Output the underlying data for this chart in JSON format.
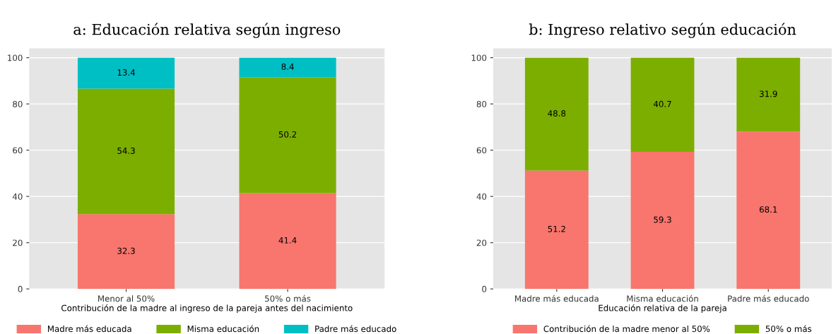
{
  "chart_data": [
    {
      "type": "bar",
      "stacked": true,
      "title": "a: Educación relativa según ingreso",
      "xlabel": "Contribución de la madre al ingreso de la pareja antes del nacimiento",
      "categories": [
        "Menor al 50%",
        "50% o más"
      ],
      "series": [
        {
          "name": "Madre más educada",
          "color": "#f8766d",
          "values": [
            32.3,
            41.4
          ]
        },
        {
          "name": "Misma educación",
          "color": "#7cae00",
          "values": [
            54.3,
            50.2
          ]
        },
        {
          "name": "Padre más educado",
          "color": "#00bfc4",
          "values": [
            13.4,
            8.4
          ]
        }
      ],
      "ylim": [
        0,
        104
      ],
      "yticks": [
        0,
        20,
        40,
        60,
        80,
        100
      ],
      "grid": "y",
      "legend": "bottom",
      "data_labels": true
    },
    {
      "type": "bar",
      "stacked": true,
      "title": "b: Ingreso relativo según educación",
      "xlabel": "Educación relativa de la pareja",
      "categories": [
        "Madre más educada",
        "Misma educación",
        "Padre más educado"
      ],
      "series": [
        {
          "name": "Contribución de la madre menor al 50%",
          "color": "#f8766d",
          "values": [
            51.2,
            59.3,
            68.1
          ]
        },
        {
          "name": "50% o más",
          "color": "#7cae00",
          "values": [
            48.8,
            40.7,
            31.9
          ]
        }
      ],
      "ylim": [
        0,
        104
      ],
      "yticks": [
        0,
        20,
        40,
        60,
        80,
        100
      ],
      "grid": "y",
      "legend": "bottom",
      "data_labels": true
    }
  ]
}
